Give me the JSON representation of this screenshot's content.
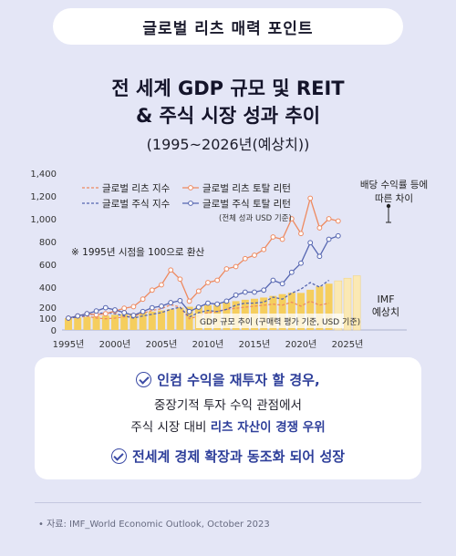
{
  "header": {
    "title": "글로벌 리츠 매력 포인트"
  },
  "main_title": {
    "line1": "전 세계 GDP 규모 및 REIT",
    "line2": "& 주식 시장 성과 추이"
  },
  "period": "(1995~2026년(예상치))",
  "colors": {
    "bar": "#f5ce5e",
    "bar_forecast": "#fbe9b4",
    "reit": "#ee8a60",
    "stock": "#5565b0",
    "accent": "#2e3f9a",
    "background": "#e4e6f6"
  },
  "chart_data": {
    "type": "bar+line",
    "legend": {
      "items": [
        "글로벌 리츠 지수",
        "글로벌 주식 지수",
        "글로벌 리츠 토탈 리턴",
        "글로벌 주식 토탈 리턴"
      ],
      "note": "(전체 성과 USD 기준)",
      "placement": "top-left"
    },
    "annotations": {
      "base_note": "※ 1995년 시점을 100으로 환산",
      "dividend_note": [
        "배당 수익률 등에",
        "따른 차이"
      ],
      "gdp_note": "GDP 규모 추이 (구매력 평가 기준, USD 기준)",
      "imf_note": [
        "IMF",
        "예상치"
      ]
    },
    "y_ticks": [
      "0",
      "100",
      "200",
      "400",
      "600",
      "800",
      "1,000",
      "1,200",
      "1,400"
    ],
    "x_ticks": [
      "1995년",
      "2000년",
      "2005년",
      "2010년",
      "2015년",
      "2020년",
      "2025년"
    ],
    "x_tick_years": [
      1995,
      2000,
      2005,
      2010,
      2015,
      2020,
      2025
    ],
    "years": [
      1995,
      1996,
      1997,
      1998,
      1999,
      2000,
      2001,
      2002,
      2003,
      2004,
      2005,
      2006,
      2007,
      2008,
      2009,
      2010,
      2011,
      2012,
      2013,
      2014,
      2015,
      2016,
      2017,
      2018,
      2019,
      2020,
      2021,
      2022,
      2023,
      2024,
      2025,
      2026
    ],
    "forecast_from": 2024,
    "gdp": [
      100,
      105,
      111,
      116,
      122,
      130,
      136,
      142,
      150,
      160,
      170,
      182,
      196,
      204,
      206,
      220,
      236,
      248,
      260,
      274,
      284,
      296,
      312,
      330,
      344,
      342,
      374,
      406,
      430,
      455,
      478,
      500
    ],
    "reit_index": [
      100,
      108,
      118,
      100,
      95,
      100,
      112,
      118,
      145,
      170,
      185,
      225,
      200,
      95,
      120,
      150,
      160,
      180,
      190,
      200,
      210,
      220,
      230,
      220,
      250,
      210,
      260,
      220,
      240
    ],
    "stock_index": [
      100,
      110,
      125,
      140,
      150,
      140,
      120,
      100,
      120,
      135,
      150,
      180,
      200,
      110,
      150,
      170,
      160,
      180,
      220,
      240,
      240,
      250,
      300,
      280,
      340,
      380,
      440,
      400,
      460
    ],
    "reit_total_return": [
      100,
      120,
      140,
      130,
      140,
      165,
      190,
      205,
      280,
      370,
      420,
      550,
      470,
      260,
      360,
      440,
      460,
      560,
      580,
      650,
      680,
      730,
      840,
      820,
      1000,
      870,
      1180,
      920,
      1000,
      980
    ],
    "stock_total_return": [
      100,
      120,
      140,
      165,
      195,
      175,
      150,
      125,
      160,
      195,
      210,
      245,
      265,
      160,
      200,
      240,
      230,
      260,
      320,
      350,
      350,
      370,
      460,
      430,
      530,
      610,
      790,
      670,
      820,
      850
    ]
  },
  "notes": {
    "line1": "인컴 수익을 재투자 할 경우,",
    "line2": "중장기적 투자 수익 관점에서",
    "line3_prefix": "주식 시장 대비 ",
    "line3_highlight": "리츠 자산이 경쟁 우위",
    "line4": "전세계 경제 확장과 동조화 되어 성장"
  },
  "source": "• 자료: IMF_World Economic Outlook, October 2023"
}
